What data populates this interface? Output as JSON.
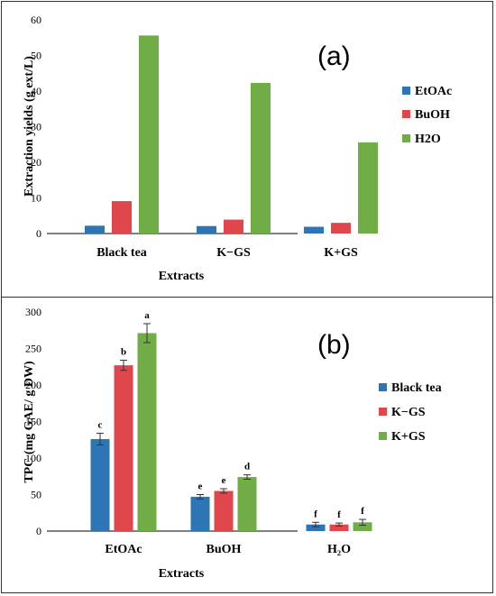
{
  "colors": {
    "blue": "#2E75B6",
    "red": "#E0474C",
    "green": "#70AD47",
    "axis": "#000000"
  },
  "chart_data": [
    {
      "type": "bar",
      "panel_label": "(a)",
      "categories": [
        "Black tea",
        "K−GS",
        "K+GS"
      ],
      "series": [
        {
          "name": "EtOAc",
          "values": [
            2.2,
            2.1,
            1.9
          ]
        },
        {
          "name": "BuOH",
          "values": [
            9.1,
            3.9,
            3.0
          ]
        },
        {
          "name": "H2O",
          "values": [
            55.6,
            42.3,
            25.6
          ]
        }
      ],
      "xlabel": "Extracts",
      "ylabel": "Extraction yields (g ext/L)",
      "ylim": [
        0,
        60
      ],
      "yticks": [
        0,
        10,
        20,
        30,
        40,
        50,
        60
      ],
      "legend": "right"
    },
    {
      "type": "bar",
      "panel_label": "(b)",
      "categories": [
        "EtOAc",
        "BuOH",
        "H₂O"
      ],
      "series": [
        {
          "name": "Black tea",
          "values": [
            126,
            47,
            9
          ],
          "errors": [
            8,
            3,
            3
          ],
          "labels": [
            "c",
            "e",
            "f"
          ]
        },
        {
          "name": "K−GS",
          "values": [
            227,
            55,
            9
          ],
          "errors": [
            7,
            3,
            2
          ],
          "labels": [
            "b",
            "e",
            "f"
          ]
        },
        {
          "name": "K+GS",
          "values": [
            271,
            74,
            12
          ],
          "errors": [
            13,
            3,
            4
          ],
          "labels": [
            "a",
            "d",
            "f"
          ]
        }
      ],
      "xlabel": "Extracts",
      "ylabel": "TPC (mg GAE/ g DW)",
      "ylim": [
        0,
        300
      ],
      "yticks": [
        0,
        50,
        100,
        150,
        200,
        250,
        300
      ],
      "legend": "right"
    }
  ]
}
